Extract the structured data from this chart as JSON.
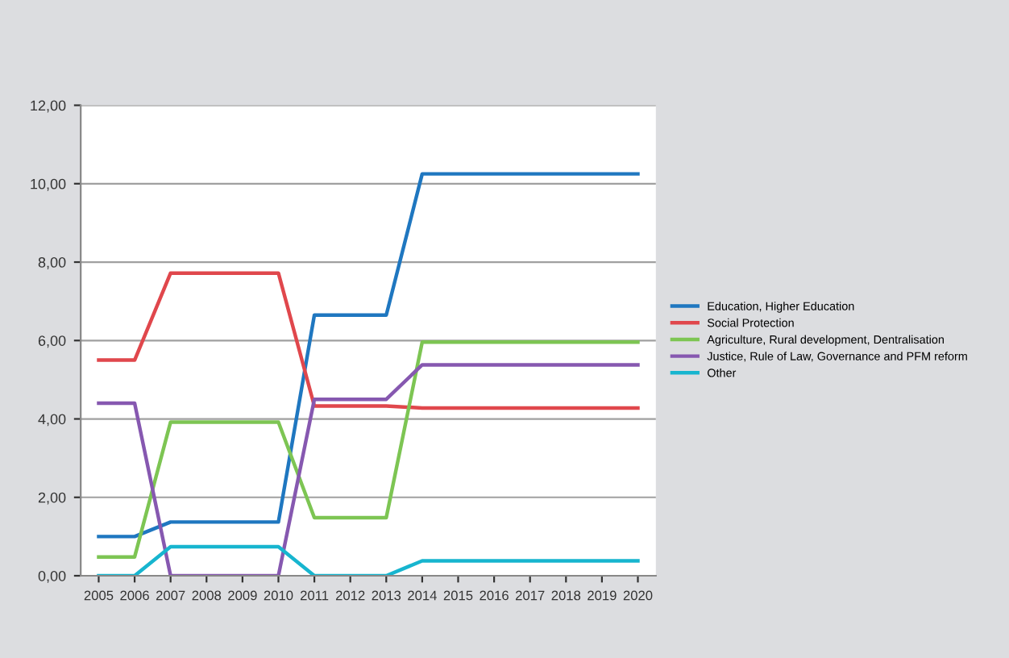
{
  "chart_data": {
    "type": "line",
    "categories": [
      "2005",
      "2006",
      "2007",
      "2008",
      "2009",
      "2010",
      "2011",
      "2012",
      "2013",
      "2014",
      "2015",
      "2016",
      "2017",
      "2018",
      "2019",
      "2020"
    ],
    "series": [
      {
        "name": "Education, Higher Education",
        "color": "#1f77c0",
        "values": [
          1.0,
          1.0,
          1.37,
          1.37,
          1.37,
          1.37,
          6.65,
          6.65,
          6.65,
          10.25,
          10.25,
          10.25,
          10.25,
          10.25,
          10.25,
          10.25
        ]
      },
      {
        "name": "Social Protection",
        "color": "#e0474c",
        "values": [
          5.5,
          5.5,
          7.72,
          7.72,
          7.72,
          7.72,
          4.33,
          4.33,
          4.33,
          4.28,
          4.28,
          4.28,
          4.28,
          4.28,
          4.28,
          4.28
        ]
      },
      {
        "name": "Agriculture, Rural development, Dentralisation",
        "color": "#7dc553",
        "values": [
          0.48,
          0.48,
          3.92,
          3.92,
          3.92,
          3.92,
          1.48,
          1.48,
          1.48,
          5.96,
          5.96,
          5.96,
          5.96,
          5.96,
          5.96,
          5.96
        ]
      },
      {
        "name": "Justice, Rule of Law, Governance and PFM reform",
        "color": "#8658b0",
        "values": [
          4.4,
          4.4,
          0,
          0,
          0,
          0,
          4.5,
          4.5,
          4.5,
          5.38,
          5.38,
          5.38,
          5.38,
          5.38,
          5.38,
          5.38
        ]
      },
      {
        "name": "Other",
        "color": "#17b5cf",
        "values": [
          0,
          0,
          0.74,
          0.74,
          0.74,
          0.74,
          0,
          0,
          0,
          0.38,
          0.38,
          0.38,
          0.38,
          0.38,
          0.38,
          0.38
        ]
      }
    ],
    "ylim": [
      0,
      12
    ],
    "yticks": [
      {
        "value": 0,
        "label": "0,00"
      },
      {
        "value": 2,
        "label": "2,00"
      },
      {
        "value": 4,
        "label": "4,00"
      },
      {
        "value": 6,
        "label": "6,00"
      },
      {
        "value": 8,
        "label": "8,00"
      },
      {
        "value": 10,
        "label": "10,00"
      },
      {
        "value": 12,
        "label": "12,00"
      }
    ],
    "grid": "y",
    "legend": "right",
    "marker": "none",
    "line_style": "solid"
  }
}
